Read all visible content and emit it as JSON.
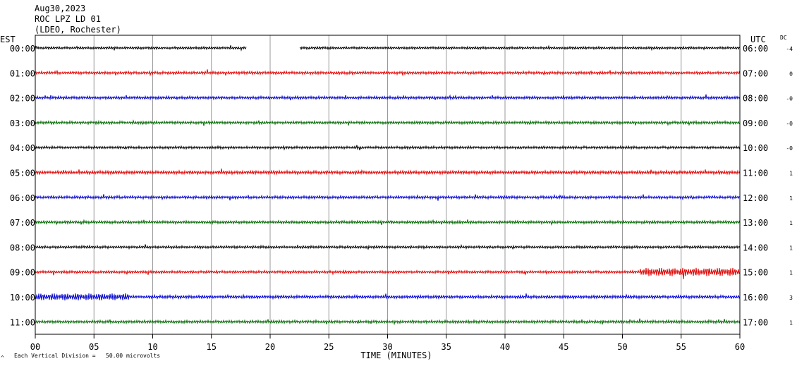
{
  "header": {
    "date": "Aug30,2023",
    "station": "ROC LPZ LD 01",
    "network": "(LDEO, Rochester)"
  },
  "left_axis_title": "EST",
  "right_axis_title": "UTC",
  "dc_title": "DC",
  "footer": {
    "scale_note": "Each Vertical Division =   50.00 microvolts",
    "corner_mark": "^"
  },
  "chart_data": {
    "type": "line",
    "title": "",
    "xlabel": "TIME (MINUTES)",
    "ylabel": "",
    "xlim": [
      0,
      60
    ],
    "x_ticks": [
      "00",
      "05",
      "10",
      "15",
      "20",
      "25",
      "30",
      "35",
      "40",
      "45",
      "50",
      "55",
      "60"
    ],
    "grid": "vertical lines every 5 minutes",
    "line_colors": [
      "#000000",
      "#dd0000",
      "#0000cc",
      "#006600"
    ],
    "gap": {
      "row": 0,
      "from_min": 18,
      "to_min": 22.5
    },
    "rows": [
      {
        "est": "00:00",
        "utc": "06:00",
        "dc": "-4",
        "color": "#000000",
        "amplitude": 1.0
      },
      {
        "est": "01:00",
        "utc": "07:00",
        "dc": "0",
        "color": "#dd0000",
        "amplitude": 1.2
      },
      {
        "est": "02:00",
        "utc": "08:00",
        "dc": "-0",
        "color": "#0000cc",
        "amplitude": 1.2
      },
      {
        "est": "03:00",
        "utc": "09:00",
        "dc": "-0",
        "color": "#006600",
        "amplitude": 1.2
      },
      {
        "est": "04:00",
        "utc": "10:00",
        "dc": "-0",
        "color": "#000000",
        "amplitude": 1.1
      },
      {
        "est": "05:00",
        "utc": "11:00",
        "dc": "1",
        "color": "#dd0000",
        "amplitude": 1.4
      },
      {
        "est": "06:00",
        "utc": "12:00",
        "dc": "1",
        "color": "#0000cc",
        "amplitude": 1.2
      },
      {
        "est": "07:00",
        "utc": "13:00",
        "dc": "1",
        "color": "#006600",
        "amplitude": 1.2
      },
      {
        "est": "08:00",
        "utc": "14:00",
        "dc": "1",
        "color": "#000000",
        "amplitude": 1.1
      },
      {
        "est": "09:00",
        "utc": "15:00",
        "dc": "1",
        "color": "#dd0000",
        "amplitude": 1.1,
        "burst_from_min": 51.5,
        "burst_amplitude": 6
      },
      {
        "est": "10:00",
        "utc": "16:00",
        "dc": "3",
        "color": "#0000cc",
        "amplitude": 1.3,
        "burst_from_min": 0,
        "burst_to_min": 8,
        "burst_amplitude": 5
      },
      {
        "est": "11:00",
        "utc": "17:00",
        "dc": "1",
        "color": "#006600",
        "amplitude": 1.2
      }
    ]
  }
}
